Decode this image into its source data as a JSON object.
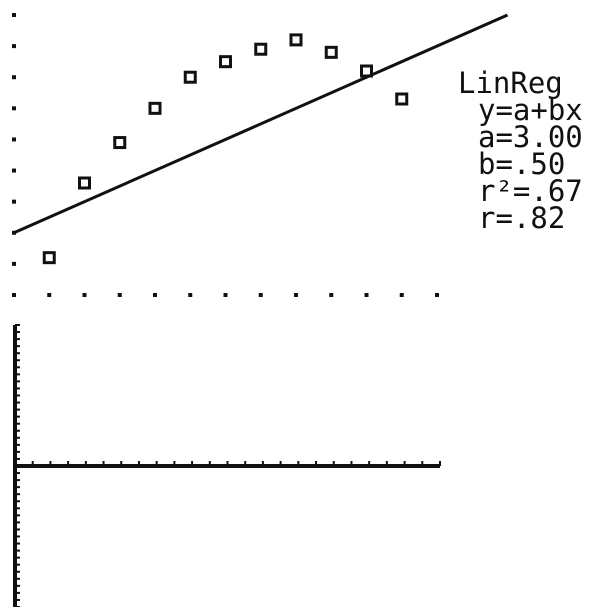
{
  "scatter_plot": {
    "chart_data": {
      "type": "scatter",
      "title": "",
      "xlabel": "",
      "ylabel": "",
      "x": [
        1,
        2,
        3,
        4,
        5,
        6,
        7,
        8,
        9,
        10,
        11
      ],
      "series": [
        {
          "marker": "square",
          "values": [
            2.2,
            4.6,
            5.9,
            7.0,
            8.0,
            8.5,
            8.9,
            9.2,
            8.8,
            8.2,
            7.3
          ]
        }
      ],
      "regression_line": {
        "a": 3.0,
        "b": 0.5
      },
      "xlim": [
        0,
        12
      ],
      "ylim": [
        1,
        10
      ],
      "x_tick_step": 1,
      "y_tick_step": 1,
      "grid": "dots"
    }
  },
  "residual_plot": {
    "chart_data": {
      "type": "scatter",
      "title": "",
      "x": [],
      "series": [],
      "xlim": [
        0,
        12
      ],
      "ylim": [
        -5,
        5
      ],
      "x_tick_step": 0.5,
      "y_tick_step": 0.25,
      "grid": "off"
    }
  },
  "stats": {
    "title": "LinReg",
    "equation": "y=a+bx",
    "a": "a=3.00",
    "b": "b=.50",
    "r2": "r²=.67",
    "r": "r=.82"
  },
  "colors": {
    "ink": "#111111",
    "background": "#ffffff"
  }
}
